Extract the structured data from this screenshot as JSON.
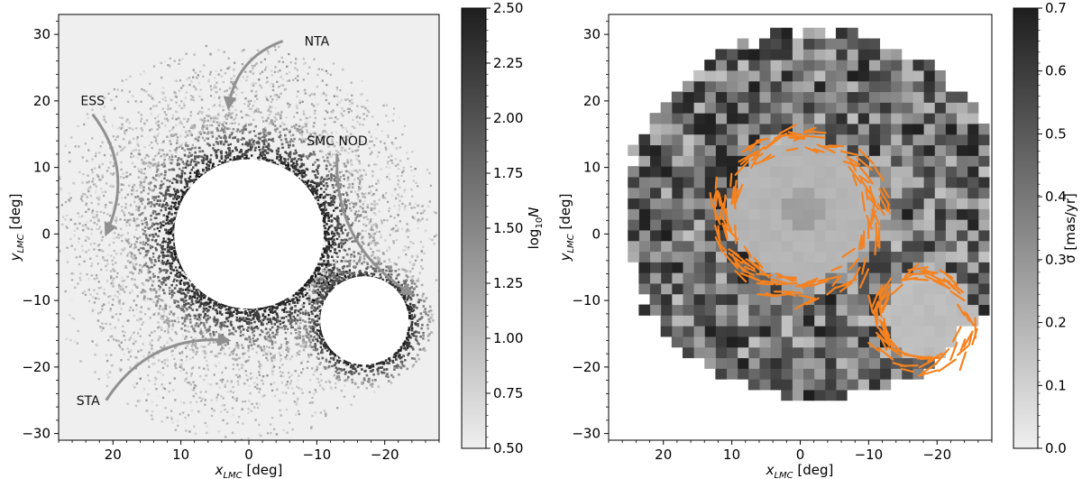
{
  "chart_data": [
    {
      "type": "heatmap",
      "title": "",
      "xlabel_main": "x",
      "xlabel_sub": "LMC",
      "xlabel_unit": " [deg]",
      "ylabel_main": "y",
      "ylabel_sub": "LMC",
      "ylabel_unit": " [deg]",
      "xlim": [
        28,
        -28
      ],
      "ylim": [
        -31,
        33
      ],
      "xticks": [
        20,
        10,
        0,
        -10,
        -20
      ],
      "xtick_labels": [
        "20",
        "10",
        "0",
        "−10",
        "−20"
      ],
      "yticks": [
        -30,
        -20,
        -10,
        0,
        10,
        20,
        30
      ],
      "ytick_labels": [
        "−30",
        "−20",
        "−10",
        "0",
        "10",
        "20",
        "30"
      ],
      "colorbar": {
        "label_main": "log",
        "label_sub": "10",
        "label_tail": "N",
        "range": [
          0.5,
          2.5
        ],
        "ticks": [
          0.5,
          0.75,
          1.0,
          1.25,
          1.5,
          1.75,
          2.0,
          2.25,
          2.5
        ],
        "tick_labels": [
          "0.50",
          "0.75",
          "1.00",
          "1.25",
          "1.50",
          "1.75",
          "2.00",
          "2.25",
          "2.50"
        ]
      },
      "masked_regions": [
        {
          "name": "LMC",
          "center": [
            0,
            0
          ],
          "radius": 11
        },
        {
          "name": "SMC",
          "center": [
            -17,
            -13
          ],
          "radius": 6.5
        }
      ],
      "annotations": [
        {
          "text": "NTA",
          "arrow_from": [
            -5,
            29
          ],
          "arrow_to": [
            3,
            19
          ]
        },
        {
          "text": "ESS",
          "arrow_from": [
            23,
            18
          ],
          "arrow_to": [
            21,
            0
          ]
        },
        {
          "text": "SMC NOD",
          "arrow_from": [
            -13,
            12
          ],
          "arrow_to": [
            -24,
            -9
          ]
        },
        {
          "text": "STA",
          "arrow_from": [
            21,
            -25
          ],
          "arrow_to": [
            3,
            -16
          ]
        }
      ]
    },
    {
      "type": "heatmap",
      "title": "",
      "xlabel_main": "x",
      "xlabel_sub": "LMC",
      "xlabel_unit": " [deg]",
      "ylabel_main": "y",
      "ylabel_sub": "LMC",
      "ylabel_unit": " [deg]",
      "xlim": [
        28,
        -28
      ],
      "ylim": [
        -31,
        33
      ],
      "xticks": [
        20,
        10,
        0,
        -10,
        -20
      ],
      "xtick_labels": [
        "20",
        "10",
        "0",
        "−10",
        "−20"
      ],
      "yticks": [
        -30,
        -20,
        -10,
        0,
        10,
        20,
        30
      ],
      "ytick_labels": [
        "−30",
        "−20",
        "−10",
        "0",
        "10",
        "20",
        "30"
      ],
      "colorbar": {
        "label": "σ [mas/yr]",
        "range": [
          0.0,
          0.7
        ],
        "ticks": [
          0.0,
          0.1,
          0.2,
          0.3,
          0.4,
          0.5,
          0.6,
          0.7
        ],
        "tick_labels": [
          "0.0",
          "0.1",
          "0.2",
          "0.3",
          "0.4",
          "0.5",
          "0.6",
          "0.7"
        ]
      },
      "smooth_regions": [
        {
          "name": "LMC",
          "center": [
            0,
            3
          ],
          "radius": 11,
          "sigma": 0.18
        },
        {
          "name": "SMC",
          "center": [
            -18,
            -13
          ],
          "radius": 6.5,
          "sigma": 0.15
        }
      ],
      "vector_color": "#f5821f"
    }
  ],
  "colors": {
    "background": "#efefef",
    "arrow": "#909090",
    "vector": "#f5821f"
  }
}
